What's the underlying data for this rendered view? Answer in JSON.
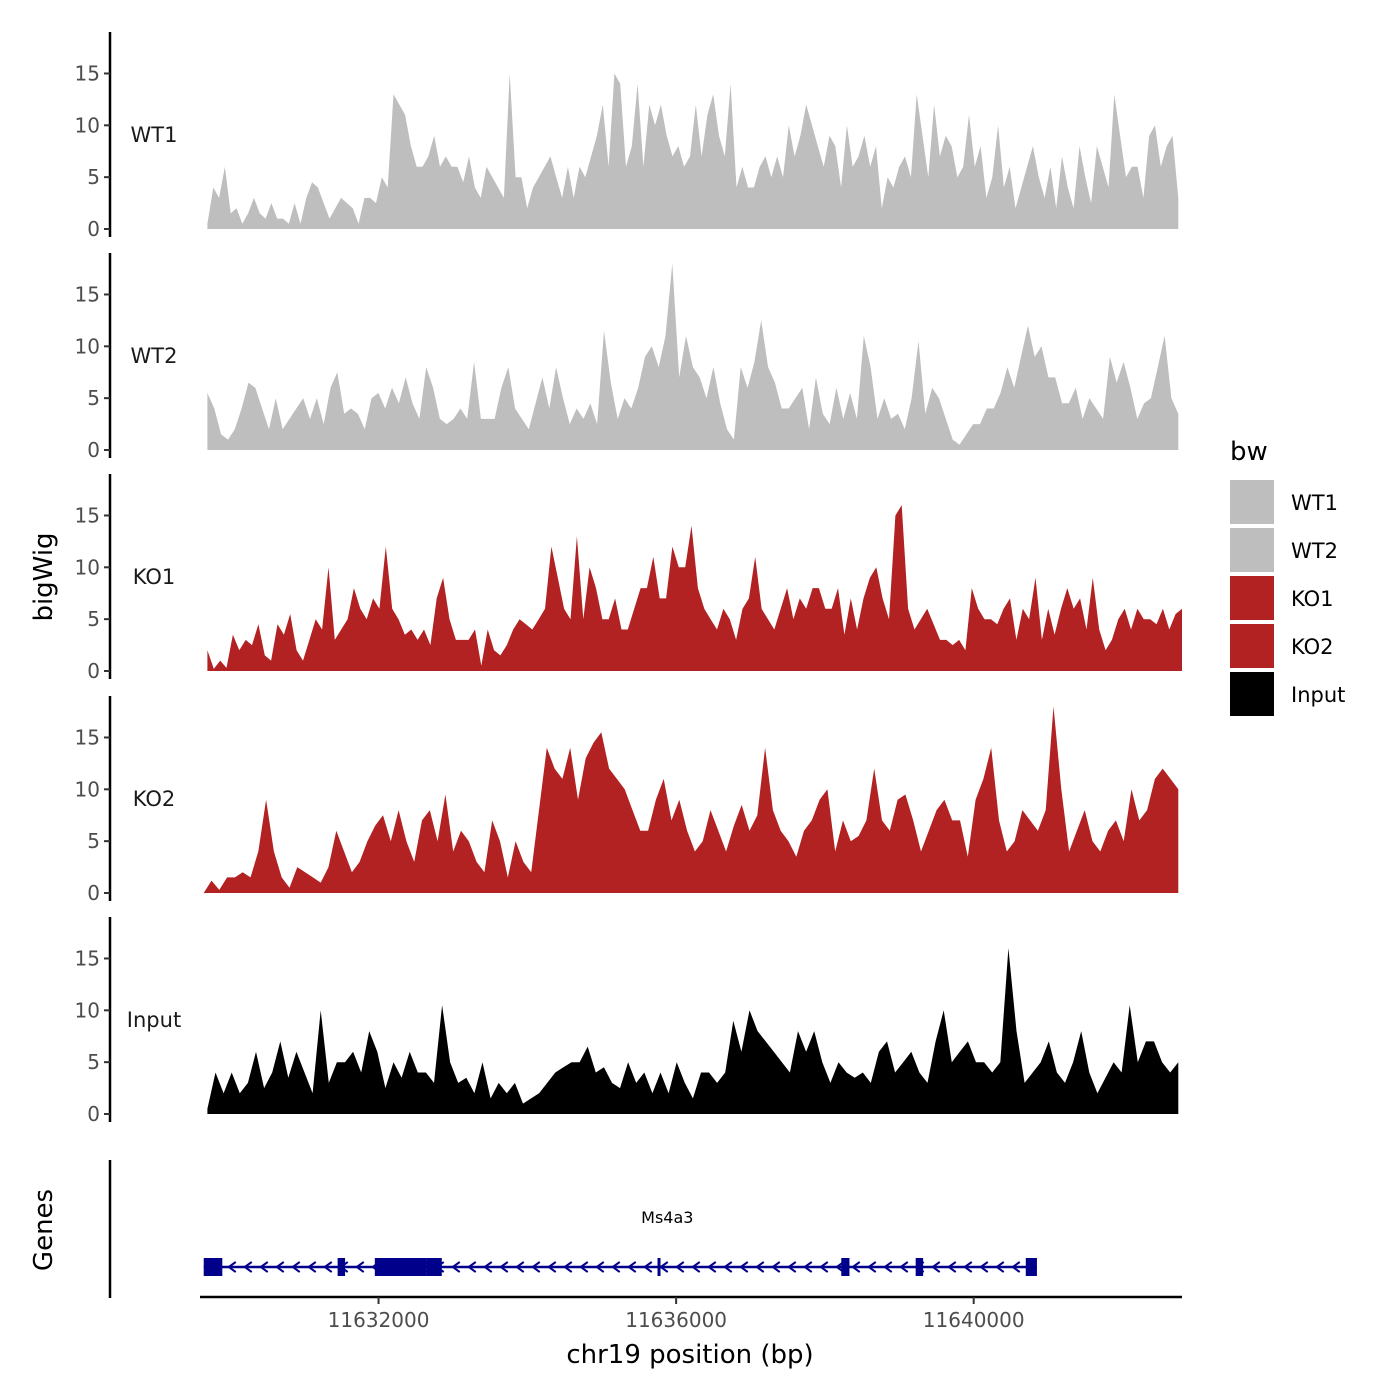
{
  "chart_data": {
    "type": "area",
    "ylabel": "bigWig",
    "xlabel": "chr19 position (bp)",
    "x_ticks": [
      11632000,
      11636000,
      11640000
    ],
    "x_tick_labels": [
      "11632000",
      "11636000",
      "11640000"
    ],
    "x_range": [
      11629600,
      11642800
    ],
    "ylim": [
      0,
      19
    ],
    "y_ticks": [
      0,
      5,
      10,
      15
    ],
    "y_tick_labels": [
      "0",
      "5",
      "10",
      "15"
    ],
    "legend": {
      "title": "bw",
      "position": "right",
      "entries": [
        {
          "label": "WT1",
          "color": "#bebebe"
        },
        {
          "label": "WT2",
          "color": "#bebebe"
        },
        {
          "label": "KO1",
          "color": "#b22222"
        },
        {
          "label": "KO2",
          "color": "#b22222"
        },
        {
          "label": "Input",
          "color": "#000000"
        }
      ]
    },
    "series": [
      {
        "name": "WT1",
        "color": "#bebebe",
        "values": [
          0.5,
          4,
          3,
          6,
          1.5,
          2,
          0.5,
          1.5,
          3,
          1.5,
          1,
          2.5,
          1,
          1,
          0.5,
          2.5,
          0.5,
          3,
          4.5,
          4,
          2.5,
          1,
          2,
          3,
          2.5,
          2,
          0.5,
          3,
          3,
          2.5,
          5,
          4,
          13,
          12,
          11,
          8,
          6,
          6,
          7,
          9,
          6,
          7,
          6,
          6,
          4.5,
          7,
          4,
          3,
          6,
          5,
          4,
          3,
          15,
          5,
          5,
          2,
          4,
          5,
          6,
          7,
          5,
          3,
          6,
          3,
          6,
          5,
          7,
          9,
          12,
          6,
          15,
          14,
          6,
          8,
          14,
          6,
          12,
          10,
          12,
          9,
          7,
          8,
          6,
          7,
          12,
          7,
          11,
          13,
          9,
          7,
          14,
          4,
          6,
          4,
          4,
          6,
          7,
          5,
          7,
          5,
          10,
          7,
          9,
          12,
          10,
          8,
          6,
          9,
          8,
          4,
          10,
          6,
          7,
          9,
          6,
          8,
          2,
          5,
          4,
          6,
          7,
          5,
          13,
          9,
          5,
          12,
          7,
          9,
          8,
          5,
          6,
          11,
          6,
          8,
          3,
          5,
          10,
          4,
          6,
          2,
          4,
          6,
          8,
          5,
          3,
          6,
          2,
          7,
          4,
          2,
          8,
          5,
          2.5,
          8,
          6,
          4,
          13,
          9,
          5,
          6,
          6,
          3,
          9,
          10,
          6,
          8,
          9,
          3
        ],
        "x_start": 11629700,
        "x_end": 11642750
      },
      {
        "name": "WT2",
        "color": "#bebebe",
        "values": [
          5.5,
          4,
          1.5,
          1,
          2,
          4,
          6.5,
          6,
          4,
          2,
          5,
          2,
          3,
          4,
          5,
          3,
          5,
          2.5,
          6,
          7.5,
          3.5,
          4,
          3.5,
          2,
          5,
          5.5,
          4,
          6,
          4.5,
          7,
          4.5,
          3,
          8,
          6,
          3,
          2.5,
          3,
          4,
          3,
          8.5,
          3,
          3,
          3,
          6,
          8,
          4,
          3,
          2,
          4.5,
          7,
          4,
          8,
          5,
          2.5,
          4,
          3,
          4.5,
          2.5,
          11.5,
          6.5,
          3,
          5,
          4,
          6,
          9,
          10,
          8,
          11,
          18,
          7,
          11,
          8,
          7,
          5,
          8,
          4.5,
          2,
          1,
          8,
          6,
          8.5,
          12.5,
          8,
          6.5,
          4,
          4,
          5,
          6,
          2,
          7,
          3.5,
          2.5,
          6,
          3,
          5.5,
          3,
          11,
          8,
          3,
          5,
          3,
          3.5,
          2,
          5,
          10.5,
          3.5,
          6,
          5,
          3,
          1,
          0.5,
          1.5,
          2.5,
          2.5,
          4,
          4,
          5.5,
          8,
          6,
          9,
          12,
          9,
          10,
          7,
          7,
          4.5,
          4.5,
          6,
          3,
          5,
          4,
          3,
          9,
          6.5,
          8.5,
          6,
          3,
          4.5,
          5,
          8,
          11,
          5,
          3.5
        ],
        "x_start": 11629700,
        "x_end": 11642750
      },
      {
        "name": "KO1",
        "color": "#b22222",
        "values": [
          2,
          0.2,
          1,
          0.3,
          3.5,
          2,
          3,
          2.5,
          4.5,
          1.5,
          1,
          4.5,
          3.5,
          5.5,
          2,
          1,
          3,
          5,
          4,
          10,
          3,
          4,
          5,
          8,
          6,
          5,
          7,
          6,
          12,
          6,
          5,
          3.5,
          4,
          3,
          4,
          2.5,
          7,
          9,
          5,
          3,
          3,
          3,
          4,
          0.5,
          4,
          2,
          1.5,
          2.5,
          4,
          5,
          4.5,
          4,
          5,
          6,
          12,
          9,
          6,
          5,
          13,
          5,
          10,
          8,
          5,
          5,
          7,
          4,
          4,
          6,
          8,
          8,
          11,
          7,
          7,
          12,
          10,
          10,
          14,
          8,
          6,
          5,
          4,
          6,
          5,
          3,
          6,
          7,
          11,
          6,
          5,
          4,
          6,
          8,
          5,
          7,
          6,
          8,
          8,
          6,
          6,
          8,
          3.5,
          7,
          4,
          7,
          9,
          10,
          7,
          5,
          15,
          16,
          6,
          4,
          5,
          6,
          4.5,
          3,
          3,
          2.5,
          3,
          2,
          8,
          6,
          5,
          5,
          4.5,
          6,
          7,
          3,
          6,
          5,
          9,
          3,
          6,
          3.5,
          6,
          8,
          6,
          7,
          4,
          9,
          4,
          2,
          3,
          5,
          6,
          4,
          6,
          5,
          5,
          4.5,
          6,
          4,
          5.5,
          6
        ],
        "x_start": 11629700,
        "x_end": 11642800
      },
      {
        "name": "KO2",
        "color": "#b22222",
        "values": [
          0,
          1.2,
          0.3,
          1.5,
          1.5,
          2,
          1.5,
          4,
          9,
          4,
          1.5,
          0.5,
          2.5,
          2,
          1.5,
          1,
          2.5,
          6,
          4,
          2,
          3,
          5,
          6.5,
          7.5,
          5,
          8,
          5,
          3,
          7,
          8,
          5,
          9.5,
          4,
          6,
          5,
          3,
          2,
          7,
          5,
          1.5,
          5,
          3,
          2,
          8,
          14,
          12,
          11,
          14,
          9,
          13,
          14.5,
          15.5,
          12,
          11,
          10,
          8,
          6,
          6,
          9,
          11,
          7,
          9,
          6,
          4,
          5,
          8,
          6,
          4,
          6.5,
          8.5,
          6,
          7.5,
          14,
          8,
          6,
          5,
          3.5,
          6,
          7,
          9,
          10,
          4,
          7,
          5,
          5.5,
          7,
          12,
          7,
          6,
          9,
          9.5,
          7,
          4,
          6,
          8,
          9,
          7,
          7,
          3.5,
          9,
          11,
          14,
          7,
          4,
          5,
          8,
          7,
          6,
          8,
          18,
          10,
          4,
          6,
          8,
          5,
          4,
          6,
          7,
          5,
          10,
          7,
          8,
          11,
          12,
          11,
          10
        ],
        "x_start": 11629650,
        "x_end": 11642750
      },
      {
        "name": "Input",
        "color": "#000000",
        "values": [
          0.5,
          4,
          2,
          4,
          2,
          3,
          6,
          2.5,
          4,
          7,
          3.5,
          6,
          4,
          2,
          10,
          3,
          5,
          5,
          6,
          4,
          8,
          6,
          2.5,
          5,
          3.5,
          6,
          4,
          4,
          3,
          10.5,
          5,
          3,
          3.5,
          2,
          5,
          1.5,
          3,
          2,
          3,
          1,
          1.5,
          2,
          3,
          4,
          4.5,
          5,
          5,
          6.5,
          4,
          4.5,
          3,
          2.5,
          5,
          3,
          4,
          2,
          4,
          2,
          5,
          3,
          1.5,
          4,
          4,
          3,
          4,
          9,
          6,
          10,
          8,
          7,
          6,
          5,
          4,
          8,
          6,
          8,
          5,
          3,
          5,
          4,
          3.5,
          4,
          3,
          6,
          7,
          4,
          5,
          6,
          4,
          3,
          7,
          10,
          5,
          6,
          7,
          5,
          5,
          4,
          5,
          16,
          8,
          3,
          4,
          5,
          7,
          4,
          3,
          5,
          8,
          4,
          2,
          3.5,
          5,
          4,
          10.5,
          5,
          7,
          7,
          5,
          4,
          5
        ],
        "x_start": 11629700,
        "x_end": 11642750
      }
    ],
    "genes": {
      "track_label": "Genes",
      "name": "Ms4a3",
      "color": "#00008b",
      "strand": "-",
      "start": 11629650,
      "end": 11640850,
      "exons": [
        {
          "start": 11629650,
          "end": 11629900
        },
        {
          "start": 11631450,
          "end": 11631550
        },
        {
          "start": 11631950,
          "end": 11632650
        },
        {
          "start": 11632650,
          "end": 11632850
        },
        {
          "start": 11635750,
          "end": 11635790
        },
        {
          "start": 11638220,
          "end": 11638330
        },
        {
          "start": 11639220,
          "end": 11639320
        },
        {
          "start": 11640700,
          "end": 11640850
        }
      ]
    }
  }
}
